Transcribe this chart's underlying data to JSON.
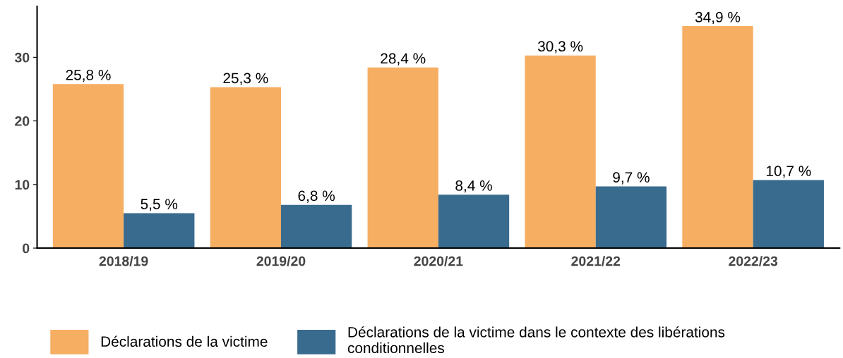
{
  "chart_data": {
    "type": "bar",
    "categories": [
      "2018/19",
      "2019/20",
      "2020/21",
      "2021/22",
      "2022/23"
    ],
    "series": [
      {
        "name": "Déclarations de la victime",
        "color": "#f6ae62",
        "values": [
          25.8,
          25.3,
          28.4,
          30.3,
          34.9
        ],
        "value_labels": [
          "25,8 %",
          "25,3 %",
          "28,4 %",
          "30,3 %",
          "34,9 %"
        ]
      },
      {
        "name": "Déclarations de la victime dans le contexte des libérations conditionnelles",
        "color": "#386b8e",
        "values": [
          5.5,
          6.8,
          8.4,
          9.7,
          10.7
        ],
        "value_labels": [
          "5,5 %",
          "6,8 %",
          "8,4 %",
          "9,7 %",
          "10,7 %"
        ]
      }
    ],
    "ylim": [
      0,
      38
    ],
    "yticks": [
      0,
      10,
      20,
      30
    ],
    "grid": false,
    "legend": "bottom"
  }
}
